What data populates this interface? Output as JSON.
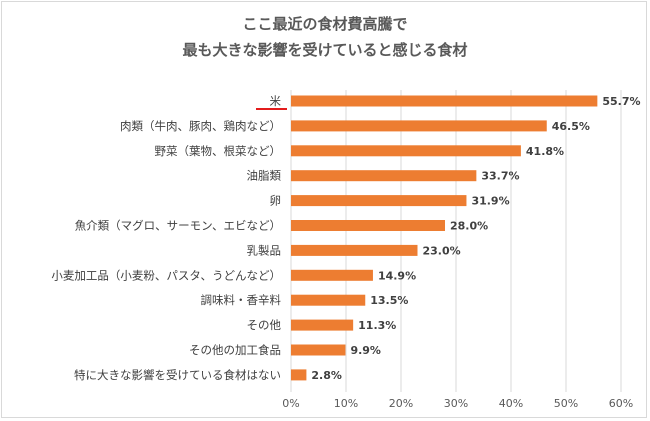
{
  "title": {
    "line1": "ここ最近の食材費高騰で",
    "line2": "最も大きな影響を受けていると感じる食材"
  },
  "colors": {
    "bar": "#ED7D31",
    "highlight_underline": "#E31C1C",
    "grid": "#D9D9D9",
    "text": "#404040"
  },
  "chart_data": {
    "type": "bar",
    "orientation": "horizontal",
    "title": "ここ最近の食材費高騰で最も大きな影響を受けていると感じる食材",
    "categories": [
      "米",
      "肉類（牛肉、豚肉、鶏肉など）",
      "野菜（葉物、根菜など）",
      "油脂類",
      "卵",
      "魚介類（マグロ、サーモン、エビなど）",
      "乳製品",
      "小麦加工品（小麦粉、パスタ、うどんなど）",
      "調味料・香辛料",
      "その他",
      "その他の加工食品",
      "特に大きな影響を受けている食材はない"
    ],
    "values": [
      55.7,
      46.5,
      41.8,
      33.7,
      31.9,
      28.0,
      23.0,
      14.9,
      13.5,
      11.3,
      9.9,
      2.8
    ],
    "value_labels": [
      "55.7%",
      "46.5%",
      "41.8%",
      "33.7%",
      "31.9%",
      "28.0%",
      "23.0%",
      "14.9%",
      "13.5%",
      "11.3%",
      "9.9%",
      "2.8%"
    ],
    "xlim": [
      0,
      60
    ],
    "xticks": [
      "0%",
      "10%",
      "20%",
      "30%",
      "40%",
      "50%",
      "60%"
    ],
    "grid": true,
    "highlighted_category": "米",
    "xlabel": "",
    "ylabel": ""
  }
}
